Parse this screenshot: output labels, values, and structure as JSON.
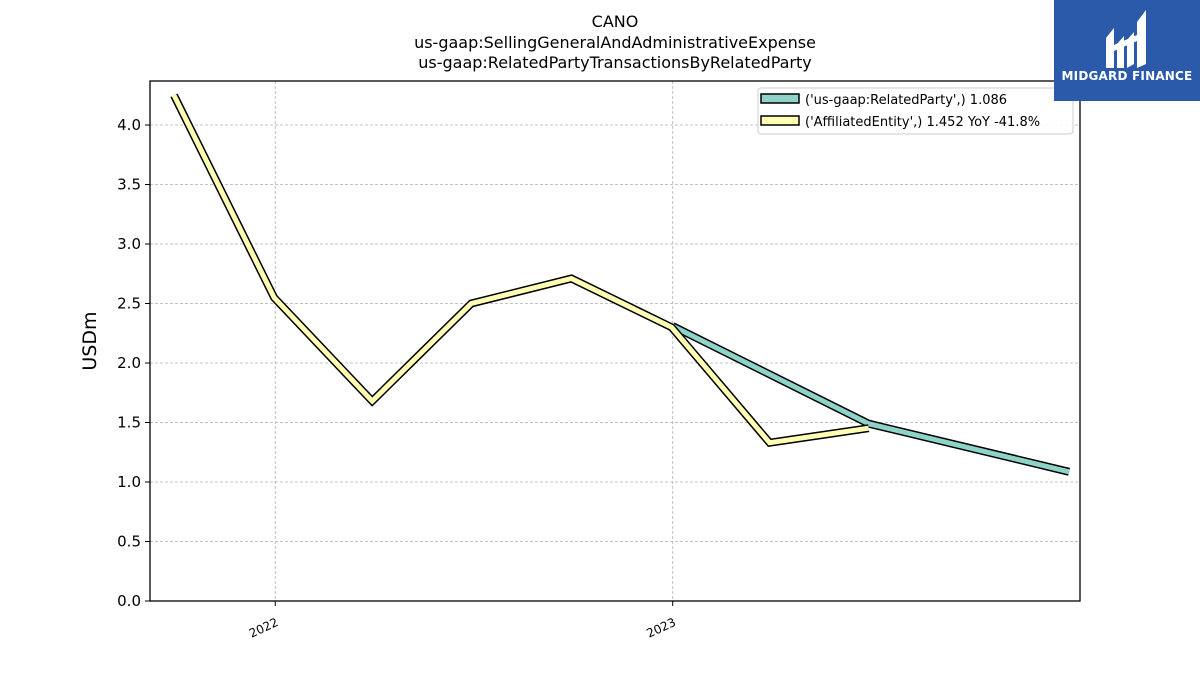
{
  "brand": {
    "name": "MIDGARD FINANCE",
    "color": "#2a5aa9"
  },
  "chart_data": {
    "type": "line",
    "title_lines": [
      "CANO",
      "us-gaap:SellingGeneralAndAdministrativeExpense",
      "us-gaap:RelatedPartyTransactionsByRelatedParty"
    ],
    "xlabel": "",
    "ylabel": "USDm",
    "ylim": [
      0,
      4.37
    ],
    "yticks": [
      0.0,
      0.5,
      1.0,
      1.5,
      2.0,
      2.5,
      3.0,
      3.5,
      4.0
    ],
    "ytick_labels": [
      "0.0",
      "0.5",
      "1.0",
      "1.5",
      "2.0",
      "2.5",
      "3.0",
      "3.5",
      "4.0"
    ],
    "xlim": [
      "2021-09-08",
      "2024-01-10"
    ],
    "xticks": [
      {
        "date": "2022-01-01",
        "label": "2022"
      },
      {
        "date": "2023-01-01",
        "label": "2023"
      }
    ],
    "grid": true,
    "legend_position": "top-right",
    "series": [
      {
        "name": "('us-gaap:RelatedParty',) 1.086",
        "color": "#8dd3c7",
        "points": [
          {
            "x": "2023-01-01",
            "y": 2.31
          },
          {
            "x": "2023-06-30",
            "y": 1.49
          },
          {
            "x": "2023-12-31",
            "y": 1.086
          }
        ]
      },
      {
        "name": "('AffiliatedEntity',) 1.452 YoY -41.8%",
        "color": "#ffffb3",
        "points": [
          {
            "x": "2021-09-30",
            "y": 4.25
          },
          {
            "x": "2021-12-31",
            "y": 2.55
          },
          {
            "x": "2022-03-31",
            "y": 1.68
          },
          {
            "x": "2022-06-30",
            "y": 2.5
          },
          {
            "x": "2022-09-30",
            "y": 2.71
          },
          {
            "x": "2022-12-31",
            "y": 2.3
          },
          {
            "x": "2023-03-31",
            "y": 1.33
          },
          {
            "x": "2023-06-30",
            "y": 1.452
          }
        ]
      }
    ]
  }
}
